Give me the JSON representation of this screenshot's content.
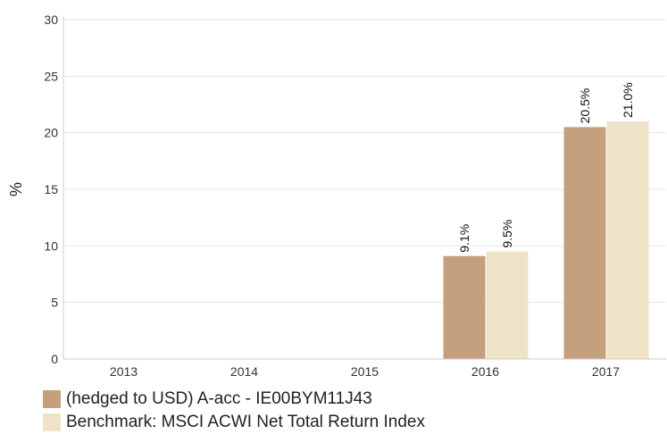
{
  "chart_data": {
    "type": "bar",
    "categories": [
      "2013",
      "2014",
      "2015",
      "2016",
      "2017"
    ],
    "series": [
      {
        "name": "(hedged to USD) A-acc - IE00BYM11J43",
        "color": "#c4a07f",
        "values": [
          null,
          null,
          null,
          9.1,
          20.5
        ],
        "labels": [
          null,
          null,
          null,
          "9.1%",
          "20.5%"
        ]
      },
      {
        "name": "Benchmark: MSCI ACWI Net Total Return Index",
        "color": "#efe3c7",
        "values": [
          null,
          null,
          null,
          9.5,
          21.0
        ],
        "labels": [
          null,
          null,
          null,
          "9.5%",
          "21.0%"
        ]
      }
    ],
    "ylabel": "%",
    "ylim": [
      0,
      30
    ],
    "yticks": [
      "0",
      "5",
      "10",
      "15",
      "20",
      "25",
      "30"
    ],
    "grid": true,
    "legend_position": "bottom-left"
  }
}
